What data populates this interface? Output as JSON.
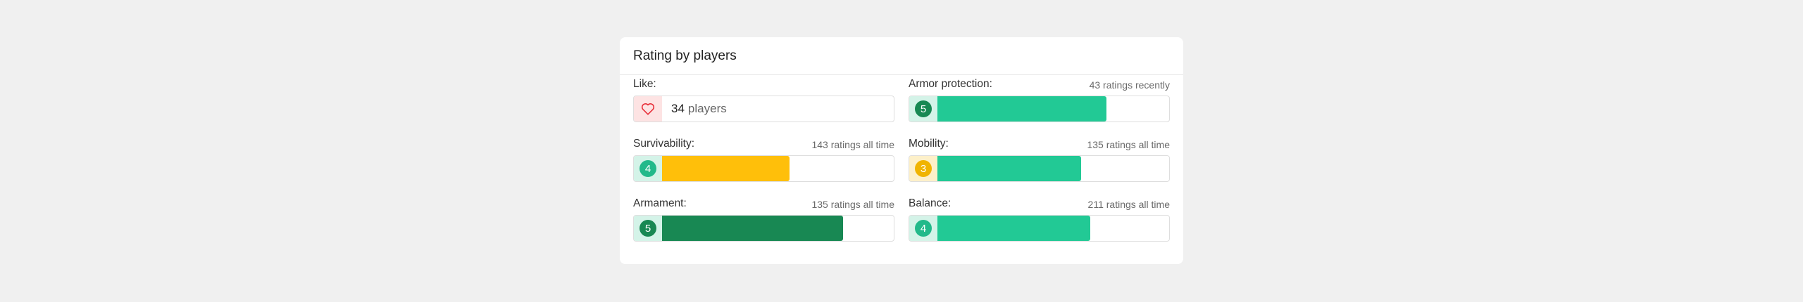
{
  "card": {
    "title": "Rating by players"
  },
  "like": {
    "label": "Like:",
    "count": "34",
    "unit": "players",
    "icon": "heart-icon"
  },
  "ratings": [
    {
      "key": "armor",
      "label": "Armor protection:",
      "count_text": "43 ratings recently",
      "score": "5",
      "fill_fraction": 0.73
    },
    {
      "key": "survivability",
      "label": "Survivability:",
      "count_text": "143 ratings all time",
      "score": "4",
      "fill_fraction": 0.55
    },
    {
      "key": "mobility",
      "label": "Mobility:",
      "count_text": "135 ratings all time",
      "score": "3",
      "fill_fraction": 0.62
    },
    {
      "key": "armament",
      "label": "Armament:",
      "count_text": "135 ratings all time",
      "score": "5",
      "fill_fraction": 0.78
    },
    {
      "key": "balance",
      "label": "Balance:",
      "count_text": "211 ratings all time",
      "score": "4",
      "fill_fraction": 0.66
    }
  ],
  "colors": {
    "green_light": "#22c995",
    "green_dark": "#188853",
    "yellow": "#ffbf0a",
    "heart": "#e8323c",
    "heart_bg": "#fde3e3",
    "badge_bg_green": "#d4f3e8",
    "badge_bg_yellow": "#fdf0c9",
    "badge_green": "#188853",
    "badge_green_light": "#22b98a",
    "badge_yellow": "#f0b400"
  }
}
